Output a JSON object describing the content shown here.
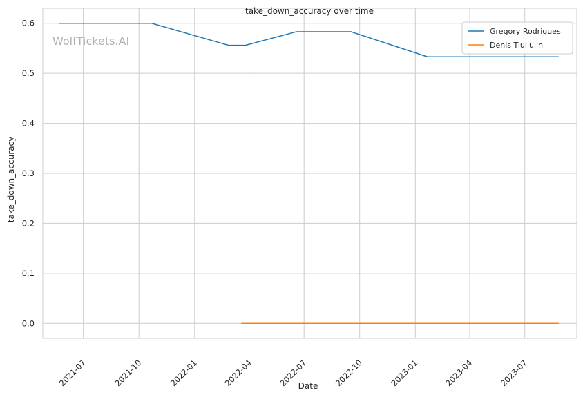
{
  "watermark": "WolfTickets.AI",
  "chart_data": {
    "type": "line",
    "title": "take_down_accuracy over time",
    "xlabel": "Date",
    "ylabel": "take_down_accuracy",
    "x_axis_type": "date",
    "xlim": [
      "2021-04-25",
      "2023-09-25"
    ],
    "ylim": [
      -0.03,
      0.63
    ],
    "x_ticks": [
      "2021-07-01",
      "2021-10-01",
      "2022-01-01",
      "2022-04-01",
      "2022-07-01",
      "2022-10-01",
      "2023-01-01",
      "2023-04-01",
      "2023-07-01"
    ],
    "x_tick_labels": [
      "2021-07",
      "2021-10",
      "2022-01",
      "2022-04",
      "2022-07",
      "2022-10",
      "2023-01",
      "2023-04",
      "2023-07"
    ],
    "y_ticks": [
      0.0,
      0.1,
      0.2,
      0.3,
      0.4,
      0.5,
      0.6
    ],
    "y_tick_labels": [
      "0.0",
      "0.1",
      "0.2",
      "0.3",
      "0.4",
      "0.5",
      "0.6"
    ],
    "grid": true,
    "legend_position": "top-right",
    "series": [
      {
        "name": "Gregory Rodrigues",
        "color": "#1f77b4",
        "points": [
          {
            "x": "2021-05-22",
            "y": 0.6
          },
          {
            "x": "2021-10-22",
            "y": 0.6
          },
          {
            "x": "2022-02-26",
            "y": 0.556
          },
          {
            "x": "2022-03-26",
            "y": 0.556
          },
          {
            "x": "2022-06-18",
            "y": 0.583
          },
          {
            "x": "2022-09-17",
            "y": 0.583
          },
          {
            "x": "2023-01-21",
            "y": 0.533
          },
          {
            "x": "2023-08-26",
            "y": 0.533
          }
        ]
      },
      {
        "name": "Denis Tiuliulin",
        "color": "#ff7f0e",
        "points": [
          {
            "x": "2022-03-19",
            "y": 0.0
          },
          {
            "x": "2023-08-26",
            "y": 0.0
          }
        ]
      }
    ]
  }
}
